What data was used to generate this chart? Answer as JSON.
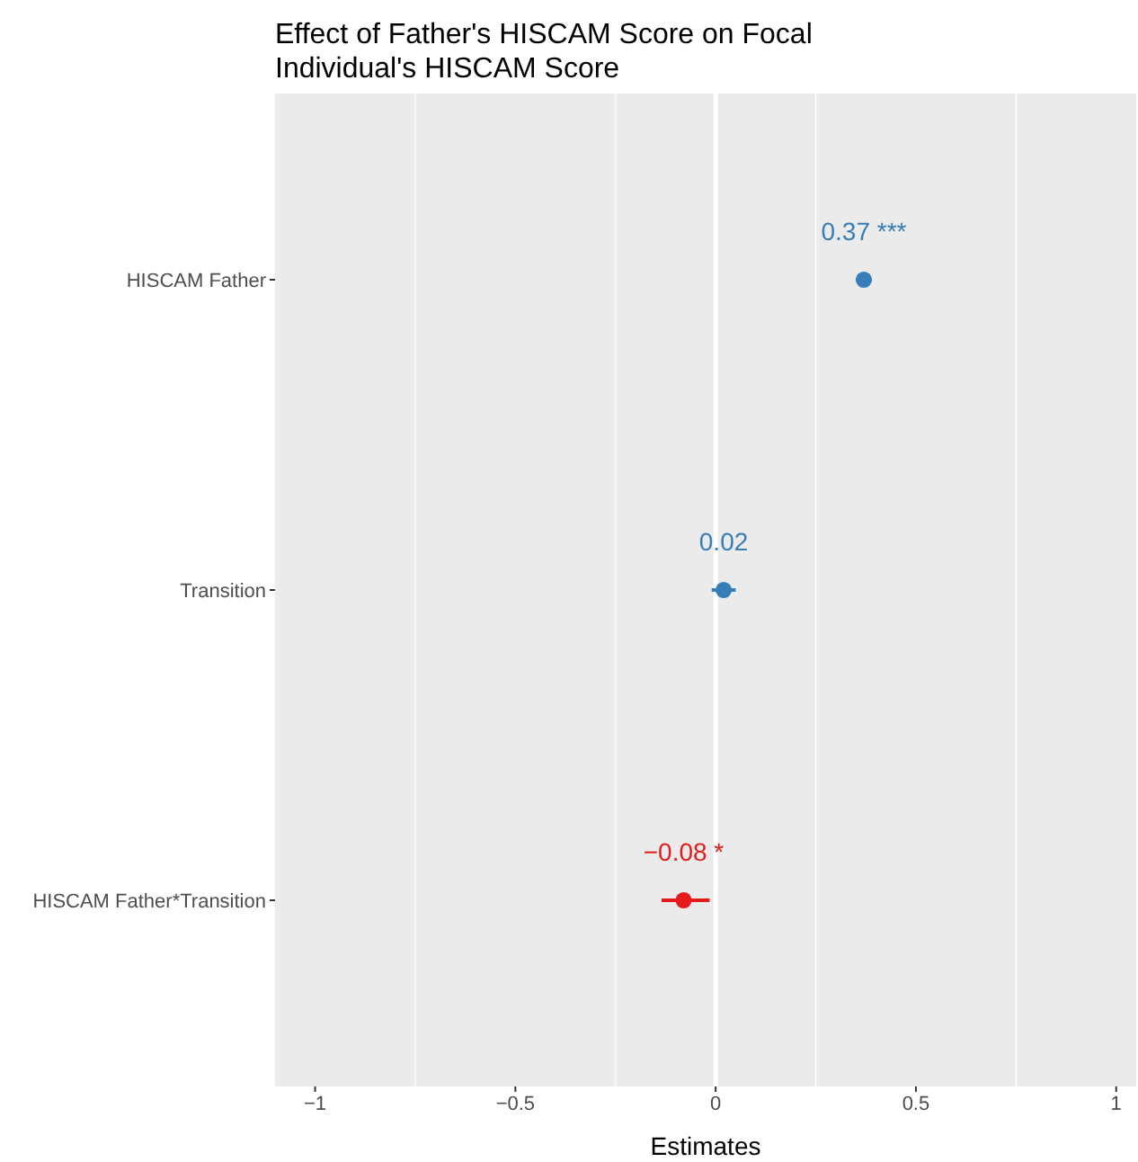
{
  "chart_data": {
    "type": "scatter",
    "orientation": "horizontal",
    "title": "Effect of Father's HISCAM Score on Focal Individual's HISCAM Score",
    "xlabel": "Estimates",
    "categories": [
      "HISCAM Father",
      "Transition",
      "HISCAM Father*Transition"
    ],
    "values": [
      0.37,
      0.02,
      -0.08
    ],
    "errors": [
      [
        0.35,
        0.39
      ],
      [
        -0.01,
        0.05
      ],
      [
        -0.135,
        -0.015
      ]
    ],
    "value_labels": [
      "0.37 ***",
      "0.02",
      "−0.08 *"
    ],
    "colors": [
      "#377eb8",
      "#377eb8",
      "#e41a1c"
    ],
    "xlim": [
      -1.1,
      1.05
    ],
    "xticks": [
      {
        "value": -1,
        "label": "−1"
      },
      {
        "value": -0.5,
        "label": "−0.5"
      },
      0,
      0.5,
      1
    ],
    "ref_lines": [
      {
        "axis": "x",
        "value": 0,
        "color": "#ffffff"
      }
    ],
    "grid": true,
    "marker": "circle"
  }
}
